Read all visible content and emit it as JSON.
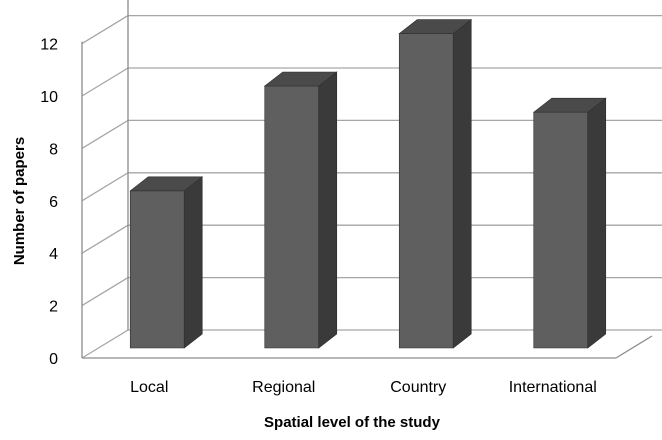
{
  "chart_data": {
    "type": "bar",
    "title": "",
    "xlabel": "Spatial level of the study",
    "ylabel": "Number of papers",
    "categories": [
      "Local",
      "Regional",
      "Country",
      "International"
    ],
    "values": [
      6,
      10,
      12,
      9
    ],
    "ylim": [
      0,
      12
    ],
    "yticks": [
      "0",
      "2",
      "4",
      "6",
      "8",
      "10",
      "12"
    ],
    "grid": true,
    "legend": "none",
    "style": "3d",
    "colors": {
      "bar_front": "#5f5f5f",
      "bar_side": "#3a3a3a",
      "bar_top": "#4a4a4a",
      "gridline": "#a6a6a6",
      "axis": "#8c8c8c"
    }
  }
}
